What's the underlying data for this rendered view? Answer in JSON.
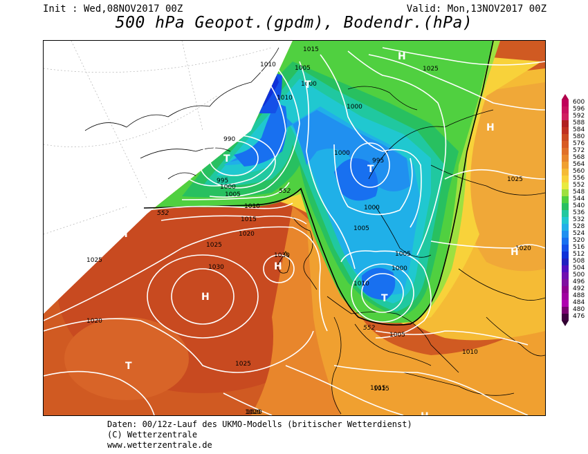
{
  "header": {
    "init": "Init : Wed,08NOV2017 00Z",
    "valid": "Valid: Mon,13NOV2017 00Z",
    "title": "500 hPa Geopot.(gpdm), Bodendr.(hPa)"
  },
  "footer": {
    "line1": "Daten: 00/12z-Lauf des UKMO-Modells (britischer Wetterdienst)",
    "line2": "(C) Wetterzentrale",
    "line3": "www.wetterzentrale.de"
  },
  "colorbar": {
    "labels": [
      "600",
      "596",
      "592",
      "588",
      "584",
      "580",
      "576",
      "572",
      "568",
      "564",
      "560",
      "556",
      "552",
      "548",
      "544",
      "540",
      "536",
      "532",
      "528",
      "524",
      "520",
      "516",
      "512",
      "508",
      "504",
      "500",
      "496",
      "492",
      "488",
      "484",
      "480",
      "476"
    ],
    "colors": [
      "#c0005a",
      "#c8105e",
      "#d01e60",
      "#b02020",
      "#c03020",
      "#cc4a20",
      "#d85a22",
      "#e07028",
      "#e8862c",
      "#f0a030",
      "#f5bb35",
      "#f8d23a",
      "#e8ea40",
      "#9ee040",
      "#50d040",
      "#28c060",
      "#20c8a0",
      "#20c8d0",
      "#20b0e8",
      "#2090f0",
      "#1870f0",
      "#1450e8",
      "#1030d8",
      "#2020c0",
      "#5010c0",
      "#7010b0",
      "#8010a0",
      "#900090",
      "#a000a0",
      "#b000b0",
      "#7a0070",
      "#400040"
    ]
  },
  "map": {
    "contour_labels": [
      "1015",
      "1010",
      "1005",
      "1000",
      "995",
      "990",
      "1010",
      "1015",
      "1020",
      "1025",
      "1030",
      "1030",
      "1000",
      "1005",
      "1010",
      "1020",
      "1025",
      "1020",
      "1015",
      "1010",
      "1005",
      "1000",
      "995",
      "1000",
      "1005",
      "1005",
      "1010",
      "1025",
      "1025",
      "1020",
      "1025",
      "1020",
      "1015"
    ],
    "geopot_labels": [
      "552",
      "552",
      "552"
    ],
    "pressure_centers": [
      {
        "letter": "H",
        "kind": "high"
      },
      {
        "letter": "H",
        "kind": "high"
      },
      {
        "letter": "H",
        "kind": "high"
      },
      {
        "letter": "H",
        "kind": "high"
      },
      {
        "letter": "H",
        "kind": "high"
      },
      {
        "letter": "H",
        "kind": "high"
      },
      {
        "letter": "H",
        "kind": "high"
      },
      {
        "letter": "T",
        "kind": "low"
      },
      {
        "letter": "T",
        "kind": "low"
      },
      {
        "letter": "T",
        "kind": "low"
      },
      {
        "letter": "T",
        "kind": "low"
      },
      {
        "letter": "T",
        "kind": "low"
      }
    ]
  }
}
